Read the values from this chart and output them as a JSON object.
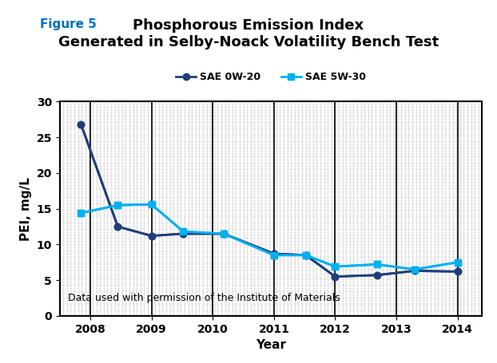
{
  "title_line1": "Phosphorous Emission Index",
  "title_line2": "Generated in Selby-Noack Volatility Bench Test",
  "figure_label": "Figure 5",
  "xlabel": "Year",
  "ylabel": "PEI, mg/L",
  "annotation": "Data used with permission of the Institute of Materials",
  "ylim": [
    0,
    30
  ],
  "yticks": [
    0,
    5,
    10,
    15,
    20,
    25,
    30
  ],
  "series": [
    {
      "label": "SAE 0W-20",
      "color": "#1F3F7A",
      "marker": "o",
      "x": [
        2007.85,
        2008.45,
        2009.0,
        2009.52,
        2010.18,
        2011.0,
        2011.52,
        2012.0,
        2012.68,
        2013.3,
        2014.0
      ],
      "y": [
        26.8,
        12.5,
        11.2,
        11.5,
        11.5,
        8.7,
        8.5,
        5.5,
        5.7,
        6.3,
        6.2
      ]
    },
    {
      "label": "SAE 5W-30",
      "color": "#00B0F0",
      "marker": "s",
      "x": [
        2007.85,
        2008.45,
        2009.0,
        2009.52,
        2010.18,
        2011.0,
        2011.52,
        2012.0,
        2012.68,
        2013.3,
        2014.0
      ],
      "y": [
        14.4,
        15.5,
        15.6,
        11.8,
        11.5,
        8.5,
        8.5,
        6.9,
        7.2,
        6.5,
        7.5
      ]
    }
  ],
  "xtick_positions": [
    2008,
    2009,
    2010,
    2011,
    2012,
    2013,
    2014
  ],
  "xtick_labels": [
    "2008",
    "2009",
    "2010",
    "2011",
    "2012",
    "2013",
    "2014"
  ],
  "xlim": [
    2007.5,
    2014.4
  ],
  "grid_color": "#555555",
  "plot_bg_color": "#ffffff",
  "outer_bg_color": "#ffffff",
  "figure_label_color": "#0070C0",
  "legend_marker_size": 6,
  "line_width": 2.0,
  "title_fontsize": 13,
  "axis_label_fontsize": 11,
  "tick_fontsize": 10,
  "legend_fontsize": 9,
  "annotation_fontsize": 9
}
